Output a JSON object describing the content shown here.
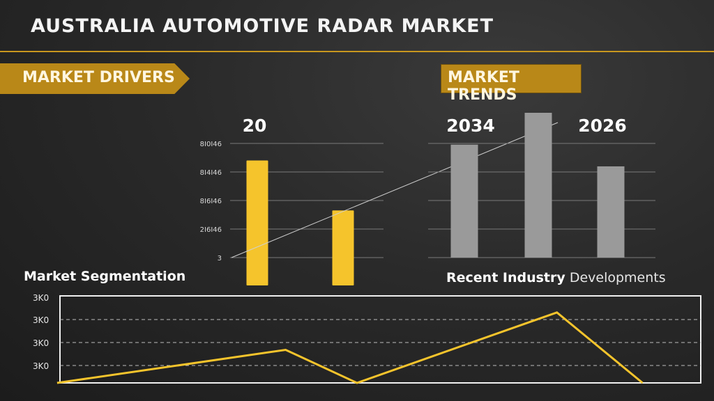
{
  "title": "AUSTRALIA AUTOMOTIVE RADAR MARKET",
  "banners": {
    "drivers": "MARKET DRIVERS",
    "trends": "MARKET TRENDS"
  },
  "labels": {
    "segmentation": "Market Segmentation",
    "recent_bold": "Recent  Industry",
    "recent_light": "Developments"
  },
  "colors": {
    "accent": "#b98818",
    "yellow_bar": "#f5c42c",
    "gray_bar": "#9a9a9a",
    "line": "#f5c42c"
  },
  "chart_data": [
    {
      "type": "bar",
      "name": "drivers",
      "title": "20",
      "tick_labels": [
        "8I0I46",
        "8I4I46",
        "8I6I46",
        "2I6I46",
        "3"
      ],
      "ylim": [
        0,
        100
      ],
      "values": [
        80,
        48
      ],
      "trend_line": true
    },
    {
      "type": "bar",
      "name": "trends",
      "annotations": [
        "2034",
        "2026"
      ],
      "ylim": [
        0,
        100
      ],
      "values": [
        78,
        100,
        63
      ]
    },
    {
      "type": "line",
      "name": "segmentation",
      "tick_labels": [
        "3K0",
        "3K0",
        "3K0",
        "3K0"
      ],
      "ylim": [
        0,
        100
      ],
      "x": [
        0,
        1,
        2,
        3,
        4,
        5
      ],
      "values": [
        0,
        38,
        0,
        81,
        0,
        0
      ],
      "points": [
        [
          0.08,
          0
        ],
        [
          0.4,
          38
        ],
        [
          0.5,
          0
        ],
        [
          0.78,
          81
        ],
        [
          0.9,
          0
        ]
      ]
    }
  ]
}
